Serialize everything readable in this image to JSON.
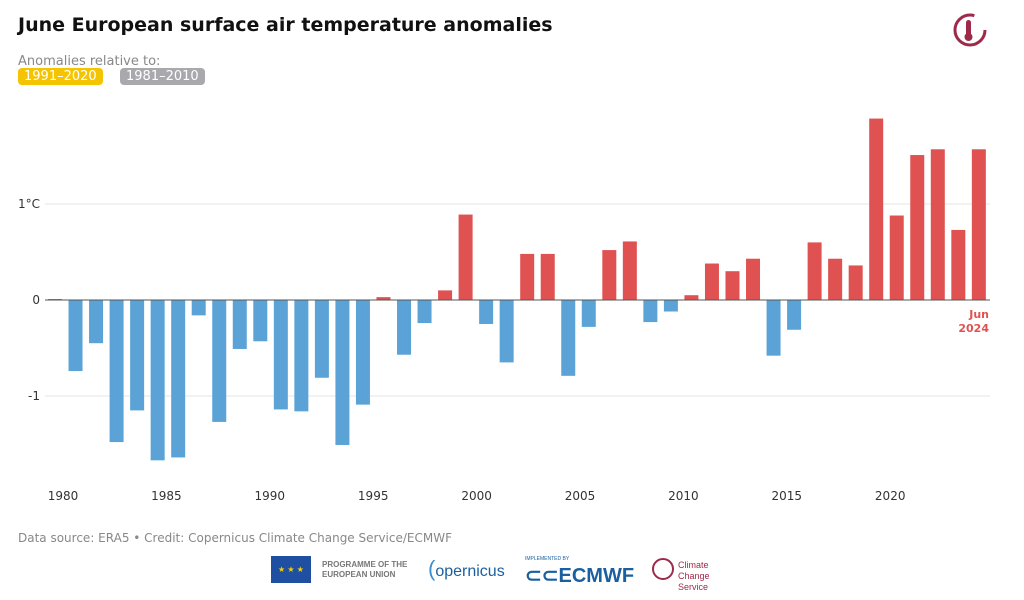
{
  "title": "June European surface air temperature anomalies",
  "subtitle": "Anomalies relative to:",
  "baselines": [
    {
      "label": "1991–2020",
      "color": "#f5c400",
      "active": true
    },
    {
      "label": "1981–2010",
      "color": "#a8a8ad",
      "active": false
    }
  ],
  "source": "Data source: ERA5 • Credit: Copernicus Climate Change Service/ECMWF",
  "logos": {
    "eu": "PROGRAMME OF THE EUROPEAN UNION",
    "copernicus": "opernicus",
    "ecmwf_small": "IMPLEMENTED BY",
    "ecmwf": "ECMWF",
    "c3s": "Climate Change Service"
  },
  "colors": {
    "positive": "#e05252",
    "negative": "#5ba3d6"
  },
  "chart_data": {
    "type": "bar",
    "title": "June European surface air temperature anomalies",
    "ylabel": "",
    "ylim": [
      -1.85,
      2.0
    ],
    "yticks": [
      {
        "v": 1,
        "label": "1°C"
      },
      {
        "v": 0,
        "label": "0"
      },
      {
        "v": -1,
        "label": "-1"
      }
    ],
    "xticks": [
      1980,
      1985,
      1990,
      1995,
      2000,
      2005,
      2010,
      2015,
      2020
    ],
    "grid": true,
    "annotation": {
      "line1": "Jun",
      "line2": "2024"
    },
    "categories": [
      1979,
      1980,
      1981,
      1982,
      1983,
      1984,
      1985,
      1986,
      1987,
      1988,
      1989,
      1990,
      1991,
      1992,
      1993,
      1994,
      1995,
      1996,
      1997,
      1998,
      1999,
      2000,
      2001,
      2002,
      2003,
      2004,
      2005,
      2006,
      2007,
      2008,
      2009,
      2010,
      2011,
      2012,
      2013,
      2014,
      2015,
      2016,
      2017,
      2018,
      2019,
      2020,
      2021,
      2022,
      2023,
      2024
    ],
    "values": [
      0.01,
      -0.74,
      -0.45,
      -1.48,
      -1.15,
      -1.67,
      -1.64,
      -0.16,
      -1.27,
      -0.51,
      -0.43,
      -1.14,
      -1.16,
      -0.81,
      -1.51,
      -1.09,
      0.03,
      -0.57,
      -0.24,
      0.1,
      0.89,
      -0.25,
      -0.65,
      0.48,
      0.48,
      -0.79,
      -0.28,
      0.52,
      0.61,
      -0.23,
      -0.12,
      0.05,
      0.38,
      0.3,
      0.43,
      -0.58,
      -0.31,
      0.6,
      0.43,
      0.36,
      1.89,
      0.88,
      1.51,
      1.57,
      0.73,
      1.57
    ]
  }
}
